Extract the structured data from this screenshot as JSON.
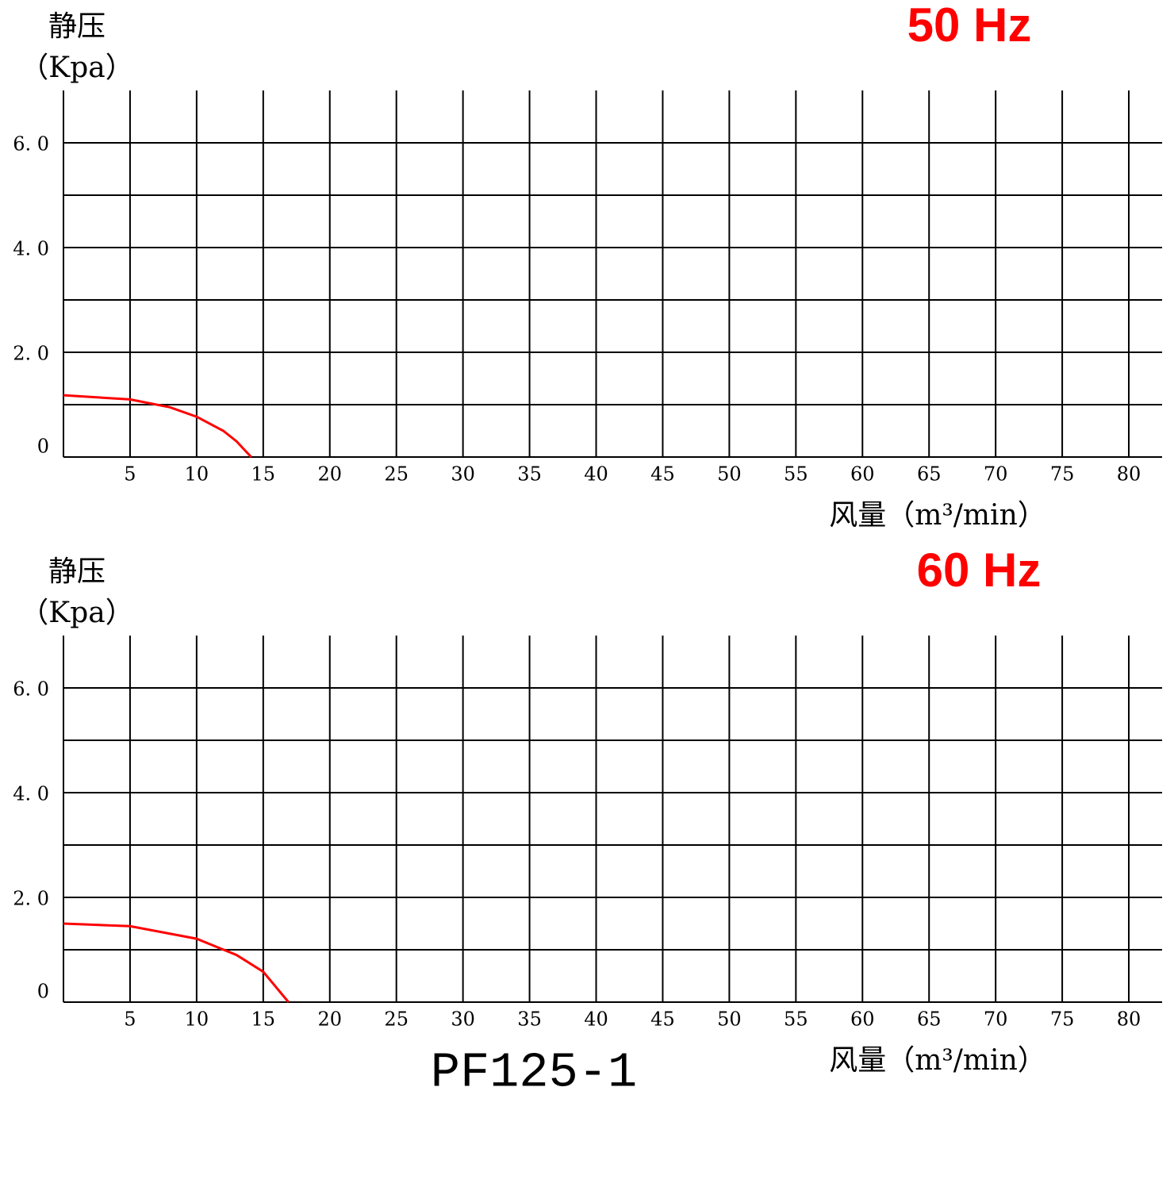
{
  "chart_data": [
    {
      "type": "line",
      "title": "50 Hz",
      "ylabel": "静压",
      "yunit": "（Kpa）",
      "xlabel": "风量（m³/min）",
      "xlim": [
        0,
        82.5
      ],
      "ylim": [
        0,
        7
      ],
      "xticks": [
        5,
        10,
        15,
        20,
        25,
        30,
        35,
        40,
        45,
        50,
        55,
        60,
        65,
        70,
        75,
        80
      ],
      "yticks": [
        0,
        {
          "value": 2,
          "label": "2. 0"
        },
        {
          "value": 4,
          "label": "4. 0"
        },
        {
          "value": 6,
          "label": "6. 0"
        }
      ],
      "yminor": [
        1,
        3,
        5
      ],
      "grid": true,
      "series": [
        {
          "color": "#ff0000",
          "x": [
            0,
            5,
            8,
            10,
            12,
            13,
            14.1
          ],
          "values": [
            1.18,
            1.1,
            0.95,
            0.77,
            0.5,
            0.3,
            0
          ]
        }
      ]
    },
    {
      "type": "line",
      "title": "60 Hz",
      "ylabel": "静压",
      "yunit": "（Kpa）",
      "xlabel": "风量（m³/min）",
      "xlim": [
        0,
        82.5
      ],
      "ylim": [
        0,
        7
      ],
      "xticks": [
        5,
        10,
        15,
        20,
        25,
        30,
        35,
        40,
        45,
        50,
        55,
        60,
        65,
        70,
        75,
        80
      ],
      "yticks": [
        0,
        {
          "value": 2,
          "label": "2. 0"
        },
        {
          "value": 4,
          "label": "4. 0"
        },
        {
          "value": 6,
          "label": "6. 0"
        }
      ],
      "yminor": [
        1,
        3,
        5
      ],
      "grid": true,
      "series": [
        {
          "color": "#ff0000",
          "x": [
            0,
            5,
            10,
            13,
            15,
            16.9
          ],
          "values": [
            1.5,
            1.45,
            1.21,
            0.9,
            0.58,
            0
          ]
        }
      ]
    }
  ],
  "model": "PF125-1"
}
